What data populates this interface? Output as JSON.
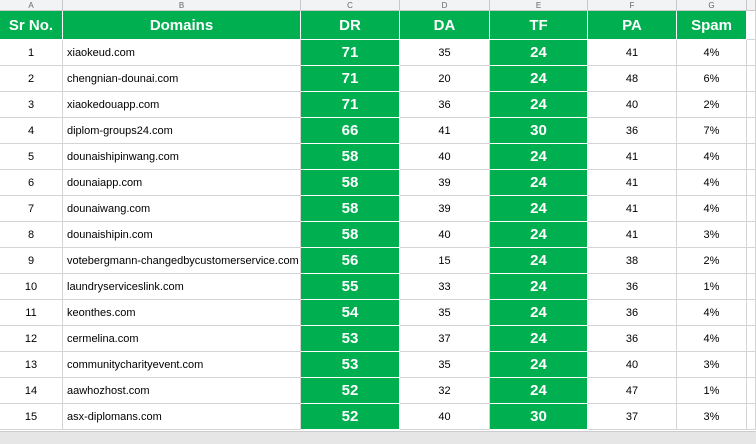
{
  "column_letters": [
    "A",
    "B",
    "C",
    "D",
    "E",
    "F",
    "G"
  ],
  "table": {
    "header": [
      "Sr No.",
      "Domains",
      "DR",
      "DA",
      "TF",
      "PA",
      "Spam"
    ],
    "rows": [
      [
        1,
        "xiaokeud.com",
        71,
        35,
        24,
        41,
        "4%"
      ],
      [
        2,
        "chengnian-dounai.com",
        71,
        20,
        24,
        48,
        "6%"
      ],
      [
        3,
        "xiaokedouapp.com",
        71,
        36,
        24,
        40,
        "2%"
      ],
      [
        4,
        "diplom-groups24.com",
        66,
        41,
        30,
        36,
        "7%"
      ],
      [
        5,
        "dounaishipinwang.com",
        58,
        40,
        24,
        41,
        "4%"
      ],
      [
        6,
        "dounaiapp.com",
        58,
        39,
        24,
        41,
        "4%"
      ],
      [
        7,
        "dounaiwang.com",
        58,
        39,
        24,
        41,
        "4%"
      ],
      [
        8,
        "dounaishipin.com",
        58,
        40,
        24,
        41,
        "3%"
      ],
      [
        9,
        "votebergmann-changedbycustomerservice.com",
        56,
        15,
        24,
        38,
        "2%"
      ],
      [
        10,
        "laundryserviceslink.com",
        55,
        33,
        24,
        36,
        "1%"
      ],
      [
        11,
        "keonthes.com",
        54,
        35,
        24,
        36,
        "4%"
      ],
      [
        12,
        "cermelina.com",
        53,
        37,
        24,
        36,
        "4%"
      ],
      [
        13,
        "communitycharityevent.com",
        53,
        35,
        24,
        40,
        "3%"
      ],
      [
        14,
        "aawhozhost.com",
        52,
        32,
        24,
        47,
        "1%"
      ],
      [
        15,
        "asx-diplomans.com",
        52,
        40,
        30,
        37,
        "3%"
      ]
    ]
  }
}
